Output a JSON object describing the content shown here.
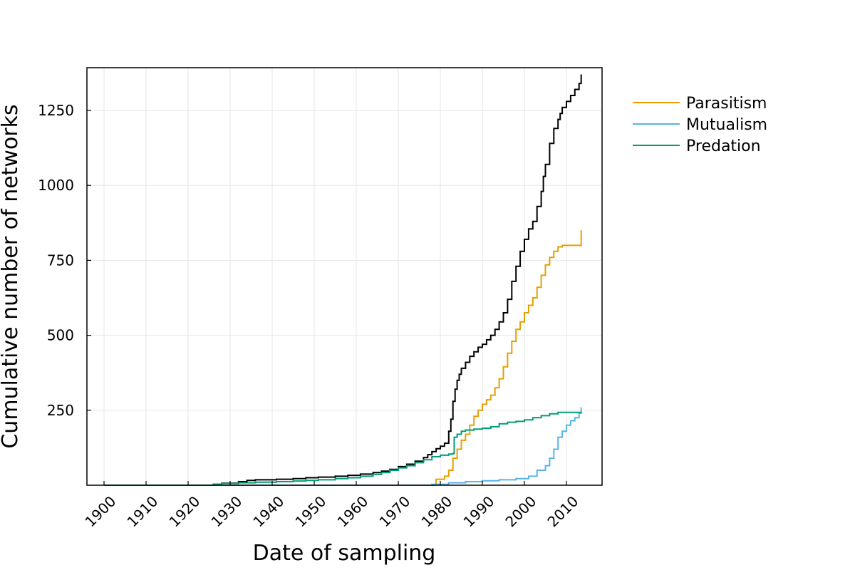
{
  "chart_data": {
    "type": "line",
    "step": true,
    "xlabel": "Date of sampling",
    "ylabel": "Cumulative number of networks",
    "xlim": [
      1896,
      2010
    ],
    "ylim": [
      0,
      1400
    ],
    "xticks": [
      1900,
      1910,
      1920,
      1930,
      1940,
      1950,
      1960,
      1970,
      1980,
      1990,
      2000,
      2010
    ],
    "yticks": [
      250,
      500,
      750,
      1000,
      1250
    ],
    "grid": true,
    "legend": "outside-top-right",
    "series": [
      {
        "name": "",
        "color": "#000000",
        "in_legend": false,
        "points": [
          [
            1900,
            0
          ],
          [
            1926,
            3
          ],
          [
            1928,
            7
          ],
          [
            1932,
            12
          ],
          [
            1934,
            16
          ],
          [
            1936,
            18
          ],
          [
            1941,
            20
          ],
          [
            1945,
            22
          ],
          [
            1948,
            25
          ],
          [
            1951,
            27
          ],
          [
            1955,
            30
          ],
          [
            1958,
            33
          ],
          [
            1961,
            37
          ],
          [
            1964,
            42
          ],
          [
            1966,
            47
          ],
          [
            1968,
            53
          ],
          [
            1970,
            62
          ],
          [
            1972,
            70
          ],
          [
            1974,
            80
          ],
          [
            1976,
            92
          ],
          [
            1977,
            102
          ],
          [
            1978,
            112
          ],
          [
            1979,
            122
          ],
          [
            1980,
            130
          ],
          [
            1981,
            140
          ],
          [
            1982,
            180
          ],
          [
            1982.5,
            220
          ],
          [
            1983,
            280
          ],
          [
            1983.5,
            320
          ],
          [
            1984,
            350
          ],
          [
            1984.5,
            370
          ],
          [
            1985,
            390
          ],
          [
            1986,
            410
          ],
          [
            1987,
            430
          ],
          [
            1988,
            445
          ],
          [
            1989,
            460
          ],
          [
            1990,
            470
          ],
          [
            1991,
            485
          ],
          [
            1992,
            500
          ],
          [
            1993,
            520
          ],
          [
            1994,
            545
          ],
          [
            1995,
            575
          ],
          [
            1996,
            620
          ],
          [
            1997,
            680
          ],
          [
            1998,
            730
          ],
          [
            1999,
            780
          ],
          [
            2000,
            820
          ],
          [
            2001,
            855
          ],
          [
            2002,
            880
          ],
          [
            2003,
            930
          ],
          [
            2004,
            980
          ],
          [
            2004.5,
            1030
          ],
          [
            2005,
            1070
          ],
          [
            2006,
            1140
          ],
          [
            2007,
            1190
          ],
          [
            2008,
            1220
          ],
          [
            2008.5,
            1240
          ],
          [
            2009,
            1260
          ],
          [
            2010,
            1280
          ],
          [
            2011,
            1300
          ],
          [
            2012,
            1320
          ],
          [
            2013,
            1340
          ],
          [
            2013.5,
            1370
          ]
        ]
      },
      {
        "name": "Parasitism",
        "color": "#e69f00",
        "in_legend": true,
        "points": [
          [
            1900,
            0
          ],
          [
            1978,
            0
          ],
          [
            1979,
            20
          ],
          [
            1981,
            30
          ],
          [
            1982,
            50
          ],
          [
            1983,
            90
          ],
          [
            1984,
            120
          ],
          [
            1985,
            150
          ],
          [
            1986,
            170
          ],
          [
            1987,
            200
          ],
          [
            1988,
            230
          ],
          [
            1989,
            250
          ],
          [
            1990,
            270
          ],
          [
            1991,
            285
          ],
          [
            1992,
            300
          ],
          [
            1993,
            325
          ],
          [
            1994,
            355
          ],
          [
            1995,
            395
          ],
          [
            1996,
            440
          ],
          [
            1997,
            480
          ],
          [
            1998,
            520
          ],
          [
            1999,
            545
          ],
          [
            2000,
            575
          ],
          [
            2001,
            600
          ],
          [
            2002,
            625
          ],
          [
            2003,
            660
          ],
          [
            2004,
            700
          ],
          [
            2005,
            735
          ],
          [
            2006,
            760
          ],
          [
            2007,
            780
          ],
          [
            2008,
            795
          ],
          [
            2009,
            800
          ],
          [
            2013.3,
            800
          ],
          [
            2013.5,
            850
          ]
        ]
      },
      {
        "name": "Mutualism",
        "color": "#56b4e9",
        "in_legend": true,
        "points": [
          [
            1900,
            0
          ],
          [
            1970,
            0
          ],
          [
            1978,
            3
          ],
          [
            1982,
            8
          ],
          [
            1986,
            12
          ],
          [
            1990,
            15
          ],
          [
            1994,
            18
          ],
          [
            1998,
            22
          ],
          [
            2001,
            30
          ],
          [
            2003,
            50
          ],
          [
            2005,
            65
          ],
          [
            2006,
            90
          ],
          [
            2007,
            120
          ],
          [
            2008,
            160
          ],
          [
            2009,
            180
          ],
          [
            2010,
            200
          ],
          [
            2011,
            215
          ],
          [
            2012,
            225
          ],
          [
            2013,
            240
          ],
          [
            2013.5,
            260
          ]
        ]
      },
      {
        "name": "Predation",
        "color": "#009e73",
        "in_legend": true,
        "points": [
          [
            1900,
            0
          ],
          [
            1926,
            3
          ],
          [
            1928,
            6
          ],
          [
            1932,
            8
          ],
          [
            1936,
            10
          ],
          [
            1941,
            12
          ],
          [
            1945,
            14
          ],
          [
            1948,
            16
          ],
          [
            1951,
            18
          ],
          [
            1955,
            22
          ],
          [
            1958,
            25
          ],
          [
            1961,
            30
          ],
          [
            1964,
            36
          ],
          [
            1966,
            42
          ],
          [
            1968,
            50
          ],
          [
            1970,
            58
          ],
          [
            1972,
            65
          ],
          [
            1974,
            75
          ],
          [
            1976,
            85
          ],
          [
            1978,
            95
          ],
          [
            1980,
            100
          ],
          [
            1982,
            104
          ],
          [
            1983,
            106
          ],
          [
            1983.3,
            160
          ],
          [
            1984,
            170
          ],
          [
            1985,
            180
          ],
          [
            1986,
            184
          ],
          [
            1988,
            187
          ],
          [
            1990,
            190
          ],
          [
            1992,
            195
          ],
          [
            1994,
            205
          ],
          [
            1996,
            210
          ],
          [
            1998,
            213
          ],
          [
            2000,
            218
          ],
          [
            2002,
            225
          ],
          [
            2004,
            232
          ],
          [
            2006,
            238
          ],
          [
            2008,
            243
          ],
          [
            2013.5,
            245
          ]
        ]
      }
    ]
  }
}
